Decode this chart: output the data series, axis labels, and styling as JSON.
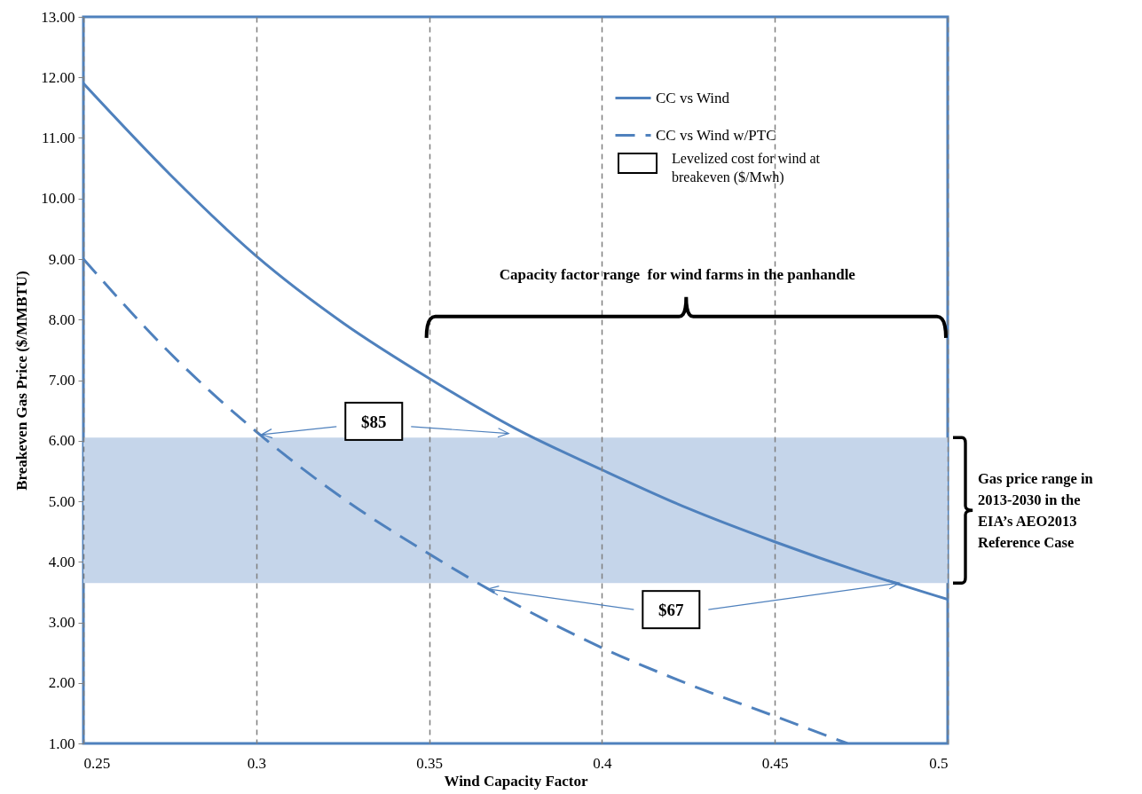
{
  "chart_data": {
    "type": "line",
    "xlabel": "Wind  Capacity  Factor",
    "ylabel": "Breakeven Gas  Price  ($/MMBTU)",
    "xlim": [
      0.25,
      0.5
    ],
    "xticks": [
      0.25,
      0.3,
      0.35,
      0.4,
      0.45,
      0.5
    ],
    "ylim": [
      1,
      13
    ],
    "yticks": [
      {
        "value": 1,
        "label": "1.00"
      },
      {
        "value": 2,
        "label": "2.00"
      },
      {
        "value": 3,
        "label": "3.00"
      },
      {
        "value": 4,
        "label": "4.00"
      },
      {
        "value": 5,
        "label": "5.00"
      },
      {
        "value": 6,
        "label": "6.00"
      },
      {
        "value": 7,
        "label": "7.00"
      },
      {
        "value": 8,
        "label": "8.00"
      },
      {
        "value": 9,
        "label": "9.00"
      },
      {
        "value": 10,
        "label": "10.00"
      },
      {
        "value": 11,
        "label": "11.00"
      },
      {
        "value": 12,
        "label": "12.00"
      },
      {
        "value": 13,
        "label": "13.00"
      }
    ],
    "grid": "x",
    "legend": "top right",
    "marker": "none",
    "series": [
      {
        "name": "CC vs Wind",
        "color": "#4f81bd",
        "line_style": "solid",
        "x": [
          0.25,
          0.275,
          0.3,
          0.325,
          0.35,
          0.375,
          0.4,
          0.425,
          0.45,
          0.475,
          0.5
        ],
        "values": [
          11.9,
          10.4,
          9.05,
          7.95,
          7.03,
          6.2,
          5.52,
          4.88,
          4.33,
          3.83,
          3.38
        ]
      },
      {
        "name": "CC vs Wind w/PTC",
        "color": "#4f81bd",
        "line_style": "dashed",
        "x": [
          0.25,
          0.275,
          0.3,
          0.325,
          0.35,
          0.375,
          0.4,
          0.425,
          0.45,
          0.471
        ],
        "values": [
          9.0,
          7.45,
          6.15,
          5.05,
          4.13,
          3.3,
          2.58,
          1.98,
          1.45,
          1.0
        ]
      }
    ],
    "bands": [
      {
        "axis": "y",
        "from": 3.65,
        "to": 6.05,
        "color": "#c5d5ea",
        "label": "Gas price range in 2013-2030 in the EIA’s AEO2013 Reference Case"
      }
    ],
    "annotations": [
      "Levelized cost for wind at breakeven ($/Mwh)",
      "Capacity factor range  for wind farms in the panhandle",
      "$85",
      "$67"
    ]
  }
}
